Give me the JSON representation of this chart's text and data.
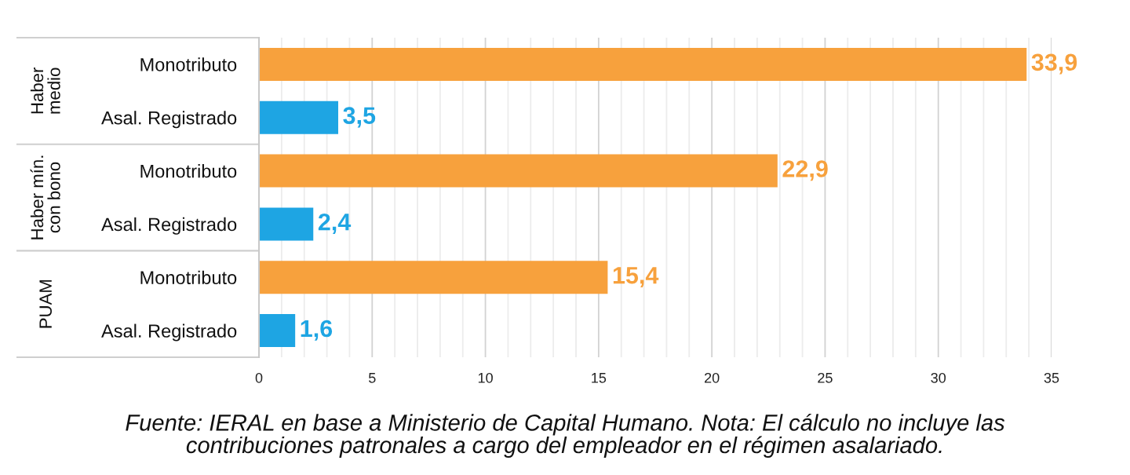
{
  "chart_data": {
    "type": "bar",
    "orientation": "horizontal",
    "categories": [
      "Monotributo",
      "Asal. Registrado",
      "Monotributo",
      "Asal. Registrado",
      "Monotributo",
      "Asal. Registrado"
    ],
    "values": [
      33.9,
      3.5,
      22.9,
      2.4,
      15.4,
      1.6
    ],
    "colors": [
      "#f7a13d",
      "#1ea5e3",
      "#f7a13d",
      "#1ea5e3",
      "#f7a13d",
      "#1ea5e3"
    ],
    "value_labels": [
      "33,9",
      "3,5",
      "22,9",
      "2,4",
      "15,4",
      "1,6"
    ],
    "xlim": [
      0,
      35
    ],
    "xticks": [
      0,
      {
        "value": 1,
        "label": null
      },
      {
        "value": 2,
        "label": null
      },
      {
        "value": 3,
        "label": null
      },
      {
        "value": 4,
        "label": null
      },
      5,
      {
        "value": 6,
        "label": null
      },
      {
        "value": 7,
        "label": null
      },
      {
        "value": 8,
        "label": null
      },
      {
        "value": 9,
        "label": null
      },
      10,
      {
        "value": 11,
        "label": null
      },
      {
        "value": 12,
        "label": null
      },
      {
        "value": 13,
        "label": null
      },
      {
        "value": 14,
        "label": null
      },
      15,
      {
        "value": 16,
        "label": null
      },
      {
        "value": 17,
        "label": null
      },
      {
        "value": 18,
        "label": null
      },
      {
        "value": 19,
        "label": null
      },
      20,
      {
        "value": 21,
        "label": null
      },
      {
        "value": 22,
        "label": null
      },
      {
        "value": 23,
        "label": null
      },
      {
        "value": 24,
        "label": null
      },
      25,
      {
        "value": 26,
        "label": null
      },
      {
        "value": 27,
        "label": null
      },
      {
        "value": 28,
        "label": null
      },
      {
        "value": 29,
        "label": null
      },
      30,
      {
        "value": 31,
        "label": null
      },
      {
        "value": 32,
        "label": null
      },
      {
        "value": 33,
        "label": null
      },
      {
        "value": 34,
        "label": null
      },
      35
    ],
    "grid": "x",
    "annotations": [
      "Haber\nmedio",
      "Haber mín.\ncon bono",
      "PUAM",
      "Fuente: IERAL en base a Ministerio de Capital Humano. Nota: El cálculo no incluye las\ncontribuciones patronales a cargo del empleador en el régimen asalariado."
    ]
  }
}
